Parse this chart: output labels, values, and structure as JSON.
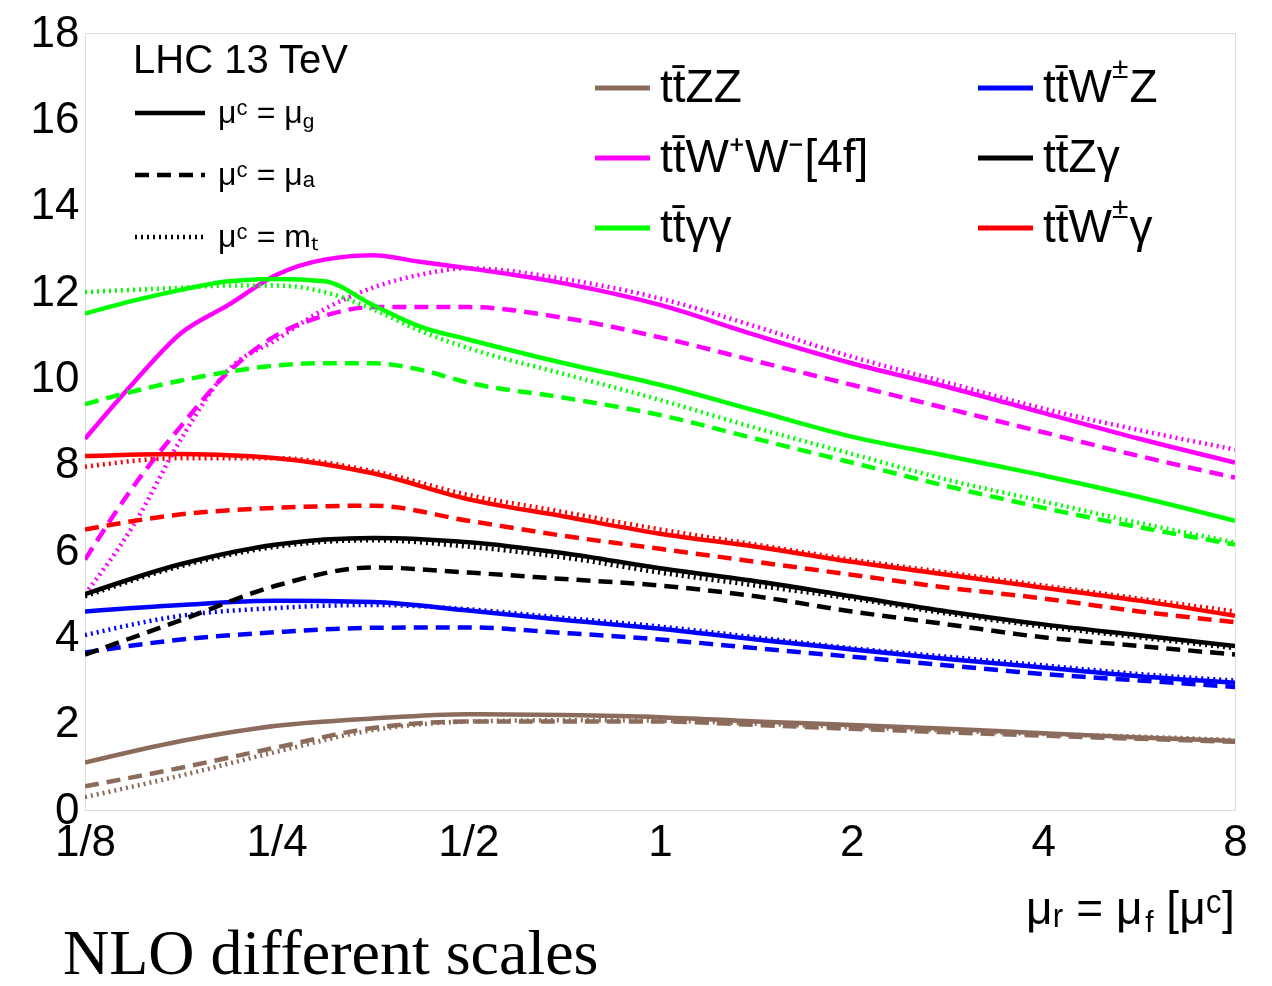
{
  "chart_data": {
    "type": "line",
    "annotations": [
      "LHC 13 TeV",
      "μᶜ = μ$_{g}$",
      "μᶜ = μₐ",
      "μᶜ = mₜ",
      "NLO different scales"
    ],
    "xlabel": "μᵣ = μ$_{f}$ [μᶜ]",
    "log": "x",
    "xlim": [
      0.125,
      8
    ],
    "xticks": [
      {
        "value": 0.125,
        "label": "1/8"
      },
      {
        "value": 0.25,
        "label": "1/4"
      },
      {
        "value": 0.5,
        "label": "1/2"
      },
      1,
      2,
      4,
      8
    ],
    "ylim": [
      0,
      18
    ],
    "yticks": [
      0,
      2,
      4,
      6,
      8,
      10,
      12,
      14,
      16,
      18
    ],
    "grid": false,
    "legend": "top right",
    "marker": "none",
    "series": [
      {
        "name": "tt̄ZZ",
        "color": "#8b6b5b",
        "line_style": "solid",
        "x": [
          0.125,
          0.177,
          0.25,
          0.354,
          0.5,
          0.707,
          1,
          1.414,
          2,
          2.828,
          4,
          5.657,
          8
        ],
        "values": [
          1.1,
          1.6,
          1.95,
          2.12,
          2.22,
          2.2,
          2.15,
          2.05,
          1.97,
          1.88,
          1.78,
          1.68,
          1.6
        ]
      },
      {
        "color": "#8b6b5b",
        "line_style": "dashed",
        "x": [
          0.125,
          0.177,
          0.25,
          0.354,
          0.5,
          0.707,
          1,
          1.414,
          2,
          2.828,
          4,
          5.657,
          8
        ],
        "values": [
          0.55,
          0.98,
          1.45,
          1.9,
          2.05,
          2.05,
          2.05,
          1.97,
          1.88,
          1.8,
          1.72,
          1.65,
          1.58
        ]
      },
      {
        "color": "#8b6b5b",
        "line_style": "dotted",
        "x": [
          0.125,
          0.177,
          0.25,
          0.354,
          0.5,
          0.707,
          1,
          1.414,
          2,
          2.828,
          4,
          5.657,
          8
        ],
        "values": [
          0.3,
          0.8,
          1.35,
          1.85,
          2.05,
          2.08,
          2.07,
          2.0,
          1.92,
          1.84,
          1.76,
          1.7,
          1.62
        ]
      },
      {
        "name": "tt̄W⁺W⁻[4f]",
        "color": "#ff00ff",
        "line_style": "solid",
        "x": [
          0.125,
          0.149,
          0.177,
          0.21,
          0.25,
          0.297,
          0.354,
          0.42,
          0.5,
          0.707,
          1,
          1.414,
          2,
          2.828,
          4,
          5.657,
          8
        ],
        "values": [
          8.6,
          9.9,
          11.05,
          11.7,
          12.4,
          12.75,
          12.85,
          12.7,
          12.55,
          12.2,
          11.7,
          11.0,
          10.35,
          9.8,
          9.2,
          8.6,
          8.05
        ]
      },
      {
        "color": "#ff00ff",
        "line_style": "dashed",
        "x": [
          0.125,
          0.149,
          0.177,
          0.21,
          0.25,
          0.297,
          0.354,
          0.42,
          0.5,
          0.707,
          1,
          1.414,
          2,
          2.828,
          4,
          5.657,
          8
        ],
        "values": [
          5.8,
          7.5,
          8.9,
          10.15,
          11.0,
          11.45,
          11.65,
          11.65,
          11.65,
          11.4,
          10.95,
          10.4,
          9.85,
          9.3,
          8.75,
          8.2,
          7.7
        ]
      },
      {
        "color": "#ff00ff",
        "line_style": "dotted",
        "x": [
          0.125,
          0.149,
          0.177,
          0.21,
          0.25,
          0.297,
          0.354,
          0.42,
          0.5,
          0.707,
          1,
          1.414,
          2,
          2.828,
          4,
          5.657,
          8
        ],
        "values": [
          5.0,
          6.6,
          8.6,
          10.2,
          10.9,
          11.6,
          12.1,
          12.4,
          12.55,
          12.3,
          11.85,
          11.2,
          10.5,
          9.9,
          9.3,
          8.8,
          8.35
        ]
      },
      {
        "name": "tt̄γγ",
        "color": "#00ff00",
        "line_style": "solid",
        "x": [
          0.125,
          0.149,
          0.177,
          0.21,
          0.25,
          0.297,
          0.354,
          0.42,
          0.5,
          0.707,
          1,
          1.414,
          2,
          2.828,
          4,
          5.657,
          8
        ],
        "values": [
          11.5,
          11.8,
          12.05,
          12.25,
          12.3,
          12.25,
          11.7,
          11.2,
          10.9,
          10.35,
          9.85,
          9.25,
          8.65,
          8.2,
          7.75,
          7.25,
          6.7
        ]
      },
      {
        "color": "#00ff00",
        "line_style": "dashed",
        "x": [
          0.125,
          0.149,
          0.177,
          0.21,
          0.25,
          0.297,
          0.354,
          0.42,
          0.5,
          0.707,
          1,
          1.414,
          2,
          2.828,
          4,
          5.657,
          8
        ],
        "values": [
          9.4,
          9.7,
          9.95,
          10.15,
          10.3,
          10.35,
          10.35,
          10.2,
          9.9,
          9.55,
          9.15,
          8.6,
          8.05,
          7.5,
          7.0,
          6.55,
          6.15
        ]
      },
      {
        "color": "#00ff00",
        "line_style": "dotted",
        "x": [
          0.125,
          0.149,
          0.177,
          0.21,
          0.25,
          0.297,
          0.354,
          0.42,
          0.5,
          0.707,
          1,
          1.414,
          2,
          2.828,
          4,
          5.657,
          8
        ],
        "values": [
          12.0,
          12.05,
          12.1,
          12.15,
          12.15,
          12.0,
          11.6,
          11.1,
          10.7,
          10.1,
          9.5,
          8.85,
          8.25,
          7.65,
          7.15,
          6.65,
          6.2
        ]
      },
      {
        "name": "tt̄W$^{±}$Z",
        "color": "#0000ff",
        "line_style": "solid",
        "x": [
          0.125,
          0.177,
          0.25,
          0.354,
          0.5,
          0.707,
          1,
          1.414,
          2,
          2.828,
          4,
          5.657,
          8
        ],
        "values": [
          4.6,
          4.75,
          4.85,
          4.82,
          4.62,
          4.4,
          4.2,
          3.95,
          3.72,
          3.5,
          3.3,
          3.1,
          2.95
        ]
      },
      {
        "color": "#0000ff",
        "line_style": "dashed",
        "x": [
          0.125,
          0.177,
          0.25,
          0.354,
          0.5,
          0.707,
          1,
          1.414,
          2,
          2.828,
          4,
          5.657,
          8
        ],
        "values": [
          3.65,
          3.95,
          4.12,
          4.22,
          4.23,
          4.1,
          3.95,
          3.75,
          3.55,
          3.35,
          3.15,
          3.0,
          2.85
        ]
      },
      {
        "color": "#0000ff",
        "line_style": "dotted",
        "x": [
          0.125,
          0.177,
          0.25,
          0.354,
          0.5,
          0.707,
          1,
          1.414,
          2,
          2.828,
          4,
          5.657,
          8
        ],
        "values": [
          4.05,
          4.5,
          4.68,
          4.75,
          4.65,
          4.45,
          4.25,
          4.0,
          3.75,
          3.55,
          3.35,
          3.15,
          3.0
        ]
      },
      {
        "name": "tt̄Zγ",
        "color": "#000000",
        "line_style": "solid",
        "x": [
          0.125,
          0.177,
          0.25,
          0.354,
          0.5,
          0.707,
          1,
          1.414,
          2,
          2.828,
          4,
          5.657,
          8
        ],
        "values": [
          5.0,
          5.7,
          6.15,
          6.3,
          6.2,
          5.95,
          5.6,
          5.3,
          4.95,
          4.6,
          4.3,
          4.05,
          3.8
        ]
      },
      {
        "color": "#000000",
        "line_style": "dashed",
        "x": [
          0.125,
          0.177,
          0.25,
          0.354,
          0.5,
          0.707,
          1,
          1.414,
          2,
          2.828,
          4,
          5.657,
          8
        ],
        "values": [
          3.6,
          4.4,
          5.2,
          5.62,
          5.5,
          5.35,
          5.2,
          4.95,
          4.6,
          4.3,
          4.0,
          3.8,
          3.6
        ]
      },
      {
        "color": "#000000",
        "line_style": "dotted",
        "x": [
          0.125,
          0.177,
          0.25,
          0.354,
          0.5,
          0.707,
          1,
          1.414,
          2,
          2.828,
          4,
          5.657,
          8
        ],
        "values": [
          4.95,
          5.65,
          6.1,
          6.25,
          6.1,
          5.85,
          5.5,
          5.2,
          4.9,
          4.55,
          4.25,
          4.0,
          3.75
        ]
      },
      {
        "name": "tt̄W$^{±}$γ",
        "color": "#ff0000",
        "line_style": "solid",
        "x": [
          0.125,
          0.177,
          0.25,
          0.354,
          0.5,
          0.707,
          1,
          1.414,
          2,
          2.828,
          4,
          5.657,
          8
        ],
        "values": [
          8.2,
          8.25,
          8.15,
          7.8,
          7.2,
          6.8,
          6.4,
          6.1,
          5.75,
          5.45,
          5.15,
          4.85,
          4.5
        ]
      },
      {
        "color": "#ff0000",
        "line_style": "dashed",
        "x": [
          0.125,
          0.177,
          0.25,
          0.354,
          0.5,
          0.707,
          1,
          1.414,
          2,
          2.828,
          4,
          5.657,
          8
        ],
        "values": [
          6.5,
          6.85,
          7.0,
          7.05,
          6.7,
          6.35,
          6.05,
          5.75,
          5.45,
          5.15,
          4.9,
          4.6,
          4.35
        ]
      },
      {
        "color": "#ff0000",
        "line_style": "dotted",
        "x": [
          0.125,
          0.177,
          0.25,
          0.354,
          0.5,
          0.707,
          1,
          1.414,
          2,
          2.828,
          4,
          5.657,
          8
        ],
        "values": [
          7.95,
          8.15,
          8.15,
          7.85,
          7.3,
          6.9,
          6.5,
          6.15,
          5.8,
          5.5,
          5.2,
          4.9,
          4.6
        ]
      }
    ]
  }
}
